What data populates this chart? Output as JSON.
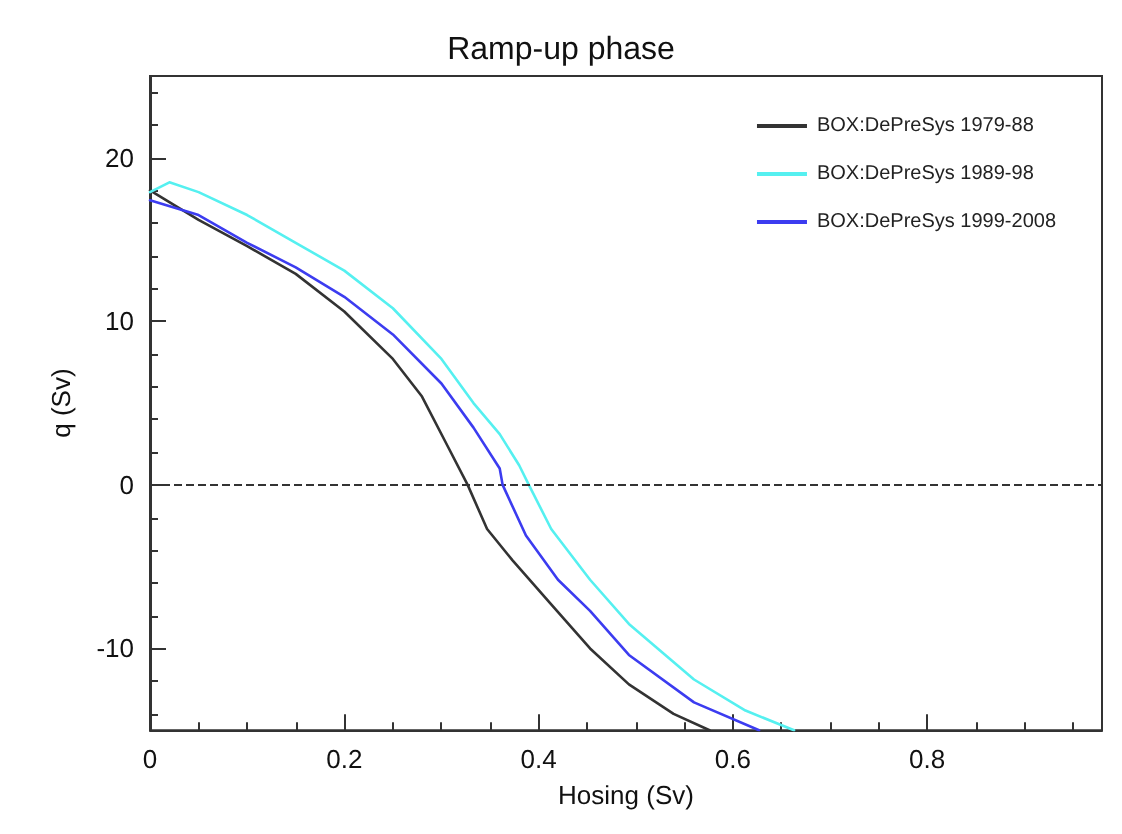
{
  "chart_data": {
    "type": "line",
    "title": "Ramp-up phase",
    "xlabel": "Hosing (Sv)",
    "ylabel": "q (Sv)",
    "xlim": [
      0,
      0.98
    ],
    "xticks": [
      0,
      0.2,
      0.4,
      0.6,
      0.8
    ],
    "ylim": [
      -15,
      25
    ],
    "yticks": [
      -10,
      0,
      10,
      20
    ],
    "grid": false,
    "legend": "top right",
    "line_style": "solid",
    "marker": "none",
    "series": [
      {
        "name": "BOX:DePreSys 1979-88",
        "color": "#333333",
        "x": [
          0,
          0.05,
          0.1,
          0.15,
          0.2,
          0.25,
          0.28,
          0.307,
          0.327,
          0.347,
          0.373,
          0.413,
          0.453,
          0.493,
          0.539,
          0.576
        ],
        "values": [
          18.0,
          16.2,
          14.6,
          12.9,
          10.6,
          7.7,
          5.4,
          2.3,
          0,
          -2.7,
          -4.6,
          -7.3,
          -10.0,
          -12.2,
          -14.0,
          -15.0
        ]
      },
      {
        "name": "BOX:DePreSys 1989-98",
        "color": "#55f0f0",
        "x": [
          0,
          0.02,
          0.05,
          0.1,
          0.15,
          0.2,
          0.25,
          0.3,
          0.333,
          0.36,
          0.38,
          0.39,
          0.413,
          0.453,
          0.493,
          0.56,
          0.613,
          0.663
        ],
        "values": [
          17.9,
          18.5,
          17.9,
          16.5,
          14.8,
          13.1,
          10.8,
          7.7,
          5.0,
          3.1,
          1.2,
          0,
          -2.7,
          -5.8,
          -8.5,
          -11.9,
          -13.8,
          -15.0
        ]
      },
      {
        "name": "BOX:DePreSys 1999-2008",
        "color": "#3c3cf0",
        "x": [
          0,
          0.05,
          0.1,
          0.15,
          0.2,
          0.25,
          0.3,
          0.333,
          0.36,
          0.363,
          0.387,
          0.42,
          0.453,
          0.493,
          0.56,
          0.627
        ],
        "values": [
          17.4,
          16.5,
          14.8,
          13.3,
          11.5,
          9.2,
          6.2,
          3.5,
          1.0,
          0,
          -3.1,
          -5.8,
          -7.7,
          -10.4,
          -13.3,
          -15.0
        ]
      }
    ],
    "ref_lines": [
      {
        "axis": "y",
        "value": 0,
        "color": "#333333",
        "line_style": "dashed"
      }
    ]
  }
}
